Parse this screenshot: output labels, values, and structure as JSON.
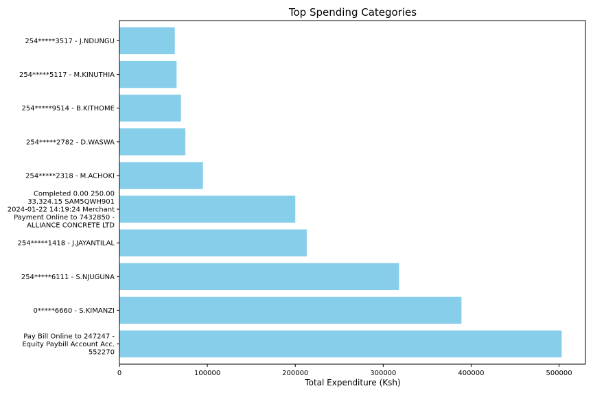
{
  "chart_data": {
    "type": "bar",
    "orientation": "horizontal",
    "title": "Top Spending Categories",
    "xlabel": "Total Expenditure (Ksh)",
    "ylabel": "",
    "xlim": [
      0,
      530000
    ],
    "xticks": [
      0,
      100000,
      200000,
      300000,
      400000,
      500000
    ],
    "xtick_labels": [
      "0",
      "100000",
      "200000",
      "300000",
      "400000",
      "500000"
    ],
    "grid": false,
    "bar_color": "#87ceeb",
    "categories": [
      [
        "Pay Bill Online to 247247 -",
        "Equity Paybill Account Acc.",
        "552270"
      ],
      [
        "0*****6660 - S.KIMANZI"
      ],
      [
        "254*****6111 - S.NJUGUNA"
      ],
      [
        "254*****1418 - J.JAYANTILAL"
      ],
      [
        "Completed 0.00 250.00",
        "33,324.15 SAM5QWH901",
        "2024-01-22 14:19:24 Merchant",
        "Payment Online to 7432850 -",
        "ALLIANCE CONCRETE LTD"
      ],
      [
        "254*****2318 - M.ACHOKI"
      ],
      [
        "254*****2782 - D.WASWA"
      ],
      [
        "254*****9514 - B.KITHOME"
      ],
      [
        "254*****5117 - M.KINUTHIA"
      ],
      [
        "254*****3517 - J.NDUNGU"
      ]
    ],
    "values": [
      503000,
      389000,
      318000,
      213000,
      200000,
      95000,
      75000,
      70000,
      65000,
      63000
    ]
  }
}
